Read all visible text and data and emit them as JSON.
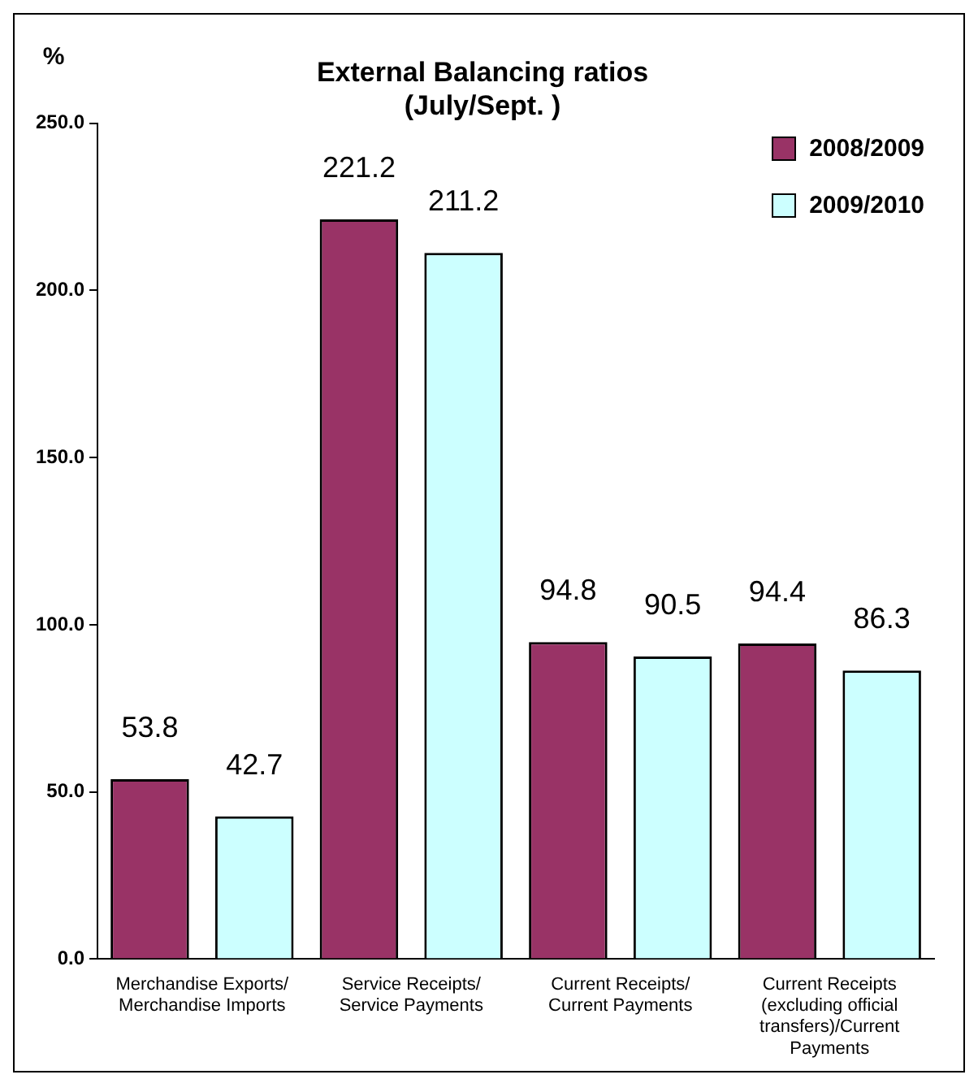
{
  "chart_data": {
    "type": "bar",
    "title": "External Balancing ratios (July/Sept. )",
    "ylabel": "%",
    "categories": [
      "Merchandise Exports/ Merchandise Imports",
      "Service Receipts/ Service Payments",
      "Current Receipts/ Current Payments",
      "Current Receipts (excluding official transfers)/Current Payments"
    ],
    "series": [
      {
        "name": "2008/2009",
        "color": "#993366",
        "values": [
          53.8,
          221.2,
          94.8,
          94.4
        ]
      },
      {
        "name": "2009/2010",
        "color": "#ccffff",
        "values": [
          42.7,
          211.2,
          90.5,
          86.3
        ]
      }
    ],
    "ylim": [
      0,
      250
    ],
    "yticks": [
      {
        "value": 0,
        "label": "0.0"
      },
      {
        "value": 50,
        "label": "50.0"
      },
      {
        "value": 100,
        "label": "100.0"
      },
      {
        "value": 150,
        "label": "150.0"
      },
      {
        "value": 200,
        "label": "200.0"
      },
      {
        "value": 250,
        "label": "250.0"
      }
    ],
    "grid": false,
    "legend": "top right",
    "data_labels": true
  }
}
